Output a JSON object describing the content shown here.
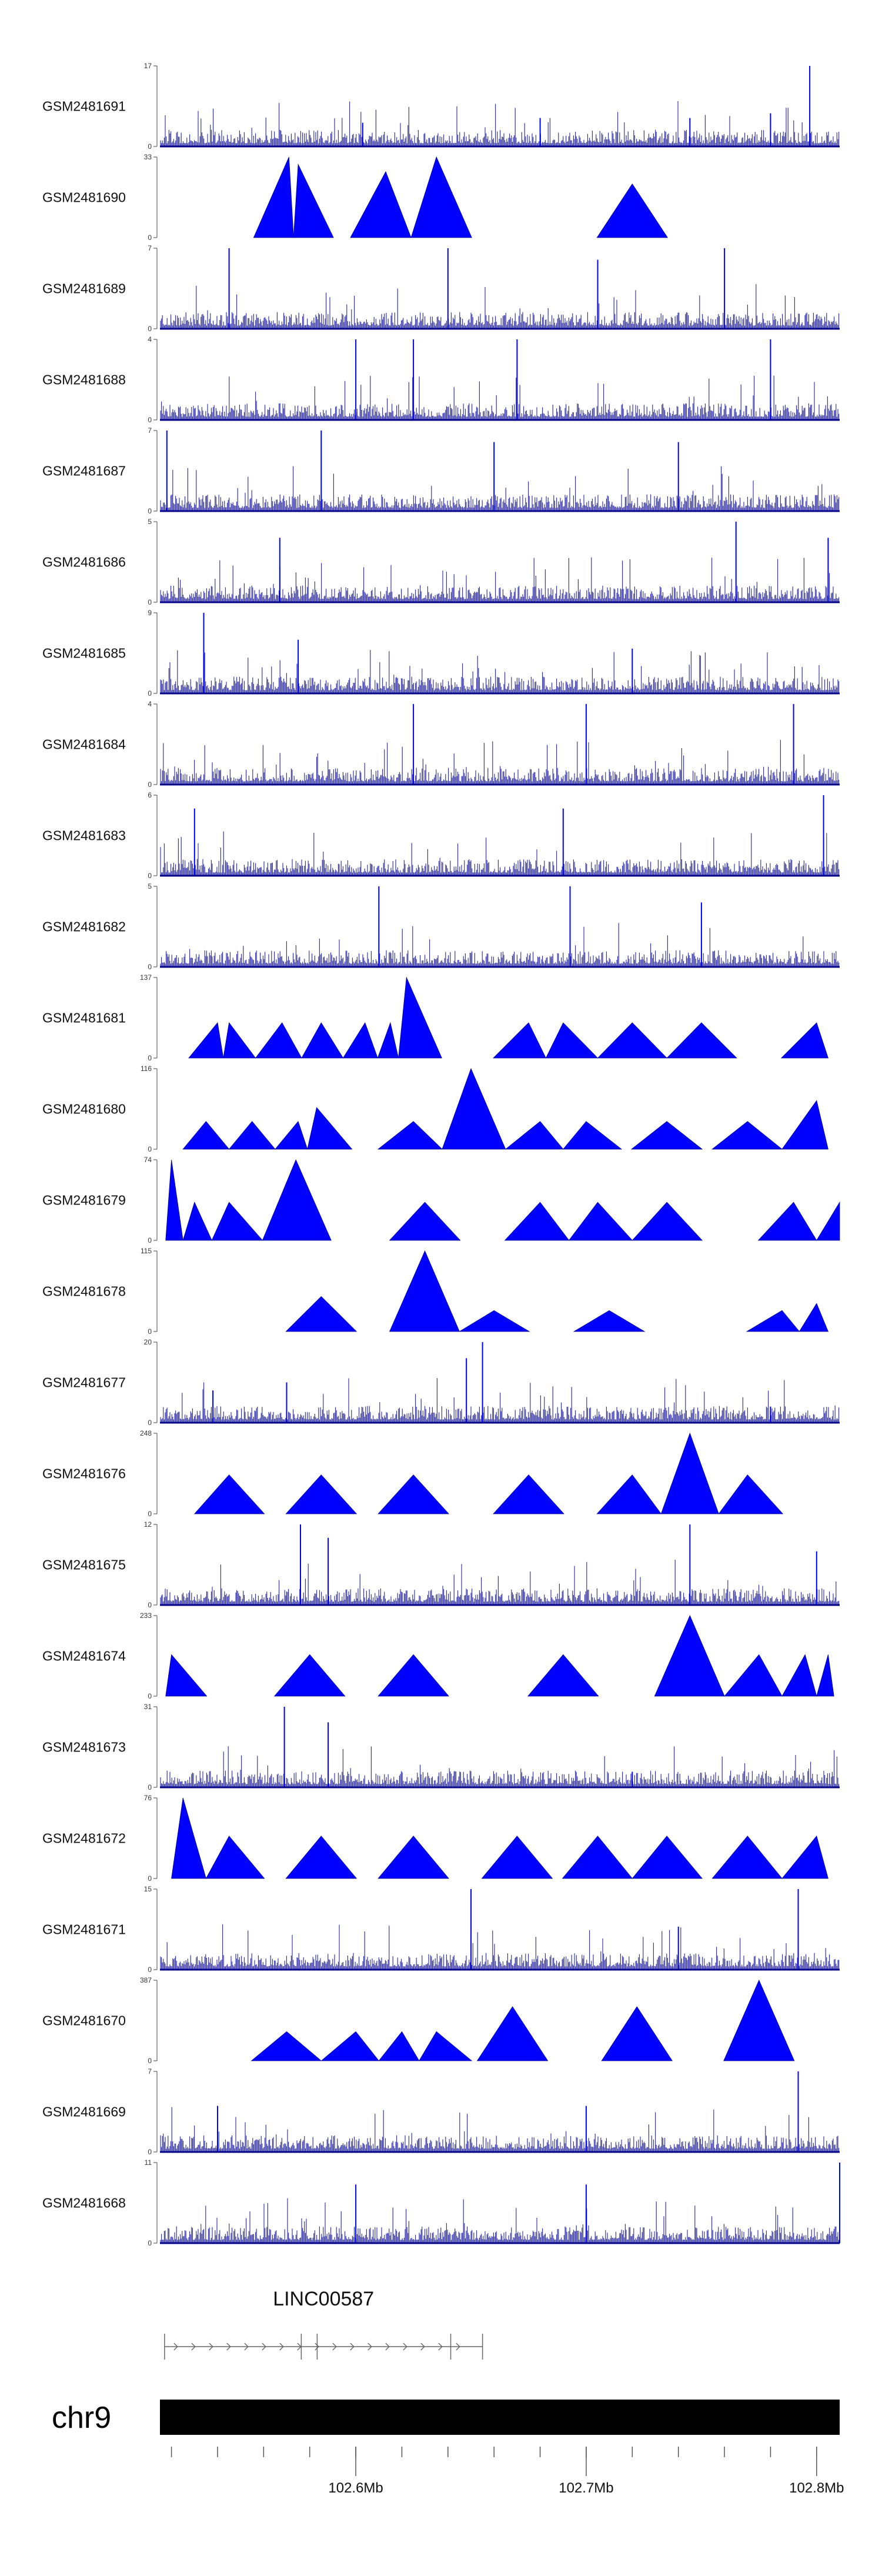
{
  "chart_data": {
    "type": "area",
    "region": {
      "chrom": "chr9",
      "start_mb": 102.515,
      "end_mb": 102.81
    },
    "x_ticks": [
      {
        "label": "102.6Mb",
        "value": 102.6
      },
      {
        "label": "102.7Mb",
        "value": 102.7
      },
      {
        "label": "102.8Mb",
        "value": 102.8
      }
    ],
    "tracks": [
      {
        "name": "GSM2481691",
        "ymin": 0,
        "ymax": 17,
        "style": "bars",
        "peaks": [
          [
            102.797,
            17
          ],
          [
            102.68,
            6
          ],
          [
            102.745,
            6
          ],
          [
            102.603,
            5
          ],
          [
            102.78,
            7
          ]
        ]
      },
      {
        "name": "GSM2481690",
        "ymin": 0,
        "ymax": 33,
        "style": "tri",
        "peaks": [
          [
            102.571,
            33
          ],
          [
            102.575,
            30
          ],
          [
            102.613,
            27
          ],
          [
            102.635,
            33
          ],
          [
            102.72,
            22
          ]
        ]
      },
      {
        "name": "GSM2481689",
        "ymin": 0,
        "ymax": 7,
        "style": "bars",
        "peaks": [
          [
            102.545,
            7
          ],
          [
            102.64,
            7
          ],
          [
            102.705,
            6
          ],
          [
            102.76,
            7
          ]
        ]
      },
      {
        "name": "GSM2481688",
        "ymin": 0,
        "ymax": 4,
        "style": "bars",
        "peaks": [
          [
            102.6,
            4
          ],
          [
            102.625,
            4
          ],
          [
            102.67,
            4
          ],
          [
            102.78,
            4
          ]
        ]
      },
      {
        "name": "GSM2481687",
        "ymin": 0,
        "ymax": 7,
        "style": "bars",
        "peaks": [
          [
            102.518,
            7
          ],
          [
            102.585,
            7
          ],
          [
            102.66,
            6
          ],
          [
            102.74,
            6
          ]
        ]
      },
      {
        "name": "GSM2481686",
        "ymin": 0,
        "ymax": 5,
        "style": "bars",
        "peaks": [
          [
            102.567,
            4
          ],
          [
            102.765,
            5
          ],
          [
            102.805,
            4
          ]
        ]
      },
      {
        "name": "GSM2481685",
        "ymin": 0,
        "ymax": 9,
        "style": "bars",
        "peaks": [
          [
            102.534,
            9
          ],
          [
            102.575,
            6
          ],
          [
            102.72,
            5
          ]
        ]
      },
      {
        "name": "GSM2481684",
        "ymin": 0,
        "ymax": 4,
        "style": "bars",
        "peaks": [
          [
            102.625,
            4
          ],
          [
            102.7,
            4
          ],
          [
            102.79,
            4
          ]
        ]
      },
      {
        "name": "GSM2481683",
        "ymin": 0,
        "ymax": 6,
        "style": "bars",
        "peaks": [
          [
            102.53,
            5
          ],
          [
            102.69,
            5
          ],
          [
            102.803,
            6
          ]
        ]
      },
      {
        "name": "GSM2481682",
        "ymin": 0,
        "ymax": 5,
        "style": "bars",
        "peaks": [
          [
            102.61,
            5
          ],
          [
            102.693,
            5
          ],
          [
            102.75,
            4
          ]
        ]
      },
      {
        "name": "GSM2481681",
        "ymin": 0,
        "ymax": 137,
        "style": "tri",
        "peaks": [
          [
            102.54,
            60
          ],
          [
            102.545,
            60
          ],
          [
            102.568,
            60
          ],
          [
            102.585,
            60
          ],
          [
            102.604,
            60
          ],
          [
            102.615,
            60
          ],
          [
            102.622,
            137
          ],
          [
            102.675,
            60
          ],
          [
            102.69,
            60
          ],
          [
            102.72,
            60
          ],
          [
            102.75,
            60
          ],
          [
            102.8,
            60
          ]
        ]
      },
      {
        "name": "GSM2481680",
        "ymin": 0,
        "ymax": 116,
        "style": "tri",
        "peaks": [
          [
            102.535,
            40
          ],
          [
            102.555,
            40
          ],
          [
            102.575,
            40
          ],
          [
            102.583,
            60
          ],
          [
            102.625,
            40
          ],
          [
            102.65,
            116
          ],
          [
            102.68,
            40
          ],
          [
            102.7,
            40
          ],
          [
            102.735,
            40
          ],
          [
            102.77,
            40
          ],
          [
            102.8,
            70
          ]
        ]
      },
      {
        "name": "GSM2481679",
        "ymin": 0,
        "ymax": 74,
        "style": "tri",
        "peaks": [
          [
            102.52,
            74
          ],
          [
            102.53,
            35
          ],
          [
            102.545,
            35
          ],
          [
            102.574,
            74
          ],
          [
            102.63,
            35
          ],
          [
            102.68,
            35
          ],
          [
            102.705,
            35
          ],
          [
            102.735,
            35
          ],
          [
            102.79,
            35
          ],
          [
            102.81,
            35
          ]
        ]
      },
      {
        "name": "GSM2481678",
        "ymin": 0,
        "ymax": 115,
        "style": "tri",
        "peaks": [
          [
            102.585,
            50
          ],
          [
            102.63,
            115
          ],
          [
            102.66,
            30
          ],
          [
            102.71,
            30
          ],
          [
            102.785,
            30
          ],
          [
            102.8,
            40
          ]
        ]
      },
      {
        "name": "GSM2481677",
        "ymin": 0,
        "ymax": 20,
        "style": "bars",
        "peaks": [
          [
            102.538,
            8
          ],
          [
            102.57,
            10
          ],
          [
            102.655,
            20
          ],
          [
            102.648,
            16
          ],
          [
            102.78,
            4
          ]
        ]
      },
      {
        "name": "GSM2481676",
        "ymin": 0,
        "ymax": 248,
        "style": "tri",
        "peaks": [
          [
            102.545,
            120
          ],
          [
            102.585,
            120
          ],
          [
            102.625,
            120
          ],
          [
            102.675,
            120
          ],
          [
            102.72,
            120
          ],
          [
            102.745,
            248
          ],
          [
            102.77,
            120
          ]
        ]
      },
      {
        "name": "GSM2481675",
        "ymin": 0,
        "ymax": 12,
        "style": "bars",
        "peaks": [
          [
            102.576,
            12
          ],
          [
            102.588,
            10
          ],
          [
            102.745,
            12
          ],
          [
            102.8,
            8
          ]
        ]
      },
      {
        "name": "GSM2481674",
        "ymin": 0,
        "ymax": 233,
        "style": "tri",
        "peaks": [
          [
            102.52,
            120
          ],
          [
            102.58,
            120
          ],
          [
            102.625,
            120
          ],
          [
            102.69,
            120
          ],
          [
            102.745,
            233
          ],
          [
            102.775,
            120
          ],
          [
            102.795,
            120
          ],
          [
            102.805,
            120
          ]
        ]
      },
      {
        "name": "GSM2481673",
        "ymin": 0,
        "ymax": 31,
        "style": "bars",
        "peaks": [
          [
            102.569,
            31
          ],
          [
            102.588,
            25
          ],
          [
            102.72,
            6
          ]
        ]
      },
      {
        "name": "GSM2481672",
        "ymin": 0,
        "ymax": 76,
        "style": "tri",
        "peaks": [
          [
            102.525,
            76
          ],
          [
            102.545,
            40
          ],
          [
            102.585,
            40
          ],
          [
            102.625,
            40
          ],
          [
            102.67,
            40
          ],
          [
            102.705,
            40
          ],
          [
            102.735,
            40
          ],
          [
            102.77,
            40
          ],
          [
            102.8,
            40
          ]
        ]
      },
      {
        "name": "GSM2481671",
        "ymin": 0,
        "ymax": 15,
        "style": "bars",
        "peaks": [
          [
            102.65,
            15
          ],
          [
            102.792,
            15
          ],
          [
            102.74,
            8
          ]
        ]
      },
      {
        "name": "GSM2481670",
        "ymin": 0,
        "ymax": 387,
        "style": "tri",
        "peaks": [
          [
            102.57,
            140
          ],
          [
            102.6,
            140
          ],
          [
            102.62,
            140
          ],
          [
            102.635,
            140
          ],
          [
            102.668,
            260
          ],
          [
            102.722,
            260
          ],
          [
            102.775,
            387
          ]
        ]
      },
      {
        "name": "GSM2481669",
        "ymin": 0,
        "ymax": 7,
        "style": "bars",
        "peaks": [
          [
            102.792,
            7
          ],
          [
            102.54,
            4
          ],
          [
            102.7,
            4
          ]
        ]
      },
      {
        "name": "GSM2481668",
        "ymin": 0,
        "ymax": 11,
        "style": "bars",
        "peaks": [
          [
            102.81,
            11
          ],
          [
            102.6,
            8
          ],
          [
            102.7,
            8
          ]
        ]
      }
    ],
    "gene": {
      "name": "LINC00587",
      "start_mb": 102.517,
      "end_mb": 102.655
    },
    "ideogram_label": "chr9",
    "colors": {
      "signal": "#0000ff",
      "signal_dark": "#00008b",
      "ideogram": "#000000"
    }
  }
}
